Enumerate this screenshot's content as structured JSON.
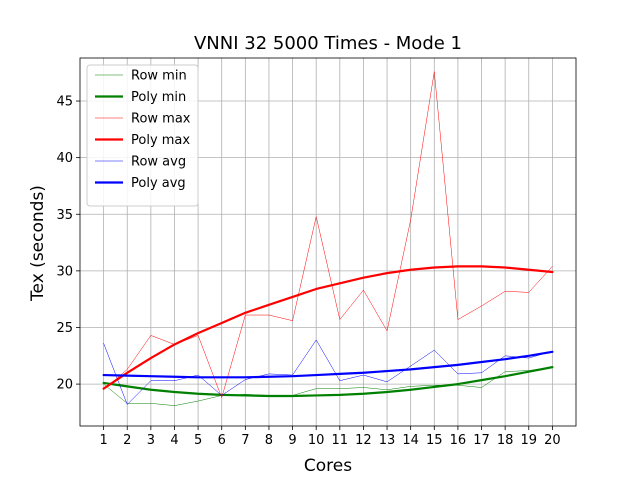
{
  "chart_data": {
    "type": "line",
    "title": "VNNI 32 5000 Times - Mode 1",
    "xlabel": "Cores",
    "ylabel": "Tex (seconds)",
    "x": [
      1,
      2,
      3,
      4,
      5,
      6,
      7,
      8,
      9,
      10,
      11,
      12,
      13,
      14,
      15,
      16,
      17,
      18,
      19,
      20
    ],
    "xlim": [
      0,
      21
    ],
    "ylim": [
      16.3,
      48.8
    ],
    "yticks": [
      20,
      25,
      30,
      35,
      40,
      45
    ],
    "grid": true,
    "legend_position": "top-left",
    "series": [
      {
        "name": "Row min",
        "color": "#008000",
        "width": 0.5,
        "values": [
          20.0,
          18.3,
          18.3,
          18.1,
          18.5,
          19.0,
          19.1,
          19.0,
          19.0,
          19.6,
          19.6,
          19.7,
          19.5,
          19.8,
          19.9,
          19.9,
          19.7,
          21.1,
          21.2,
          21.5
        ]
      },
      {
        "name": "Poly min",
        "color": "#008000",
        "width": 2.2,
        "values": [
          20.1,
          19.8,
          19.5,
          19.3,
          19.15,
          19.05,
          19.0,
          18.95,
          18.95,
          19.0,
          19.05,
          19.15,
          19.3,
          19.5,
          19.75,
          20.0,
          20.35,
          20.7,
          21.1,
          21.5
        ]
      },
      {
        "name": "Row max",
        "color": "#ff0000",
        "width": 0.5,
        "values": [
          19.5,
          21.3,
          24.3,
          23.5,
          24.3,
          18.8,
          26.1,
          26.1,
          25.6,
          34.8,
          25.7,
          28.3,
          24.7,
          34.5,
          47.6,
          25.7,
          26.9,
          28.2,
          28.1,
          30.4
        ]
      },
      {
        "name": "Poly max",
        "color": "#ff0000",
        "width": 2.2,
        "values": [
          19.6,
          21.0,
          22.3,
          23.5,
          24.5,
          25.4,
          26.3,
          27.0,
          27.7,
          28.4,
          28.9,
          29.4,
          29.8,
          30.1,
          30.3,
          30.4,
          30.4,
          30.3,
          30.1,
          29.9
        ]
      },
      {
        "name": "Row avg",
        "color": "#0000ff",
        "width": 0.5,
        "values": [
          23.6,
          18.2,
          20.3,
          20.3,
          20.8,
          19.0,
          20.4,
          20.9,
          20.8,
          23.9,
          20.3,
          20.8,
          20.2,
          21.6,
          23.0,
          20.9,
          21.0,
          22.5,
          22.3,
          22.9
        ]
      },
      {
        "name": "Poly avg",
        "color": "#0000ff",
        "width": 2.2,
        "values": [
          20.8,
          20.75,
          20.7,
          20.65,
          20.6,
          20.6,
          20.6,
          20.65,
          20.7,
          20.8,
          20.9,
          21.0,
          21.15,
          21.3,
          21.5,
          21.7,
          21.95,
          22.2,
          22.5,
          22.85
        ]
      }
    ]
  }
}
